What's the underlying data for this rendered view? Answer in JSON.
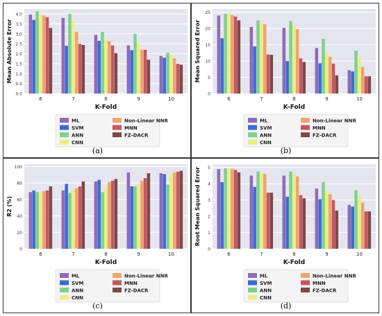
{
  "colors": {
    "plot_bg": "#e5e5ef",
    "grid": "#ffffff",
    "series": [
      "#8f6bb6",
      "#3d6bd6",
      "#7fd08e",
      "#e9ef86",
      "#eda56f",
      "#c95561",
      "#7a4b48"
    ]
  },
  "chart_data": [
    {
      "type": "bar",
      "panel_label": "(a)",
      "ylabel": "Mean Absolute Error",
      "xlabel": "K-Fold",
      "categories": [
        "6",
        "7",
        "8",
        "9",
        "10"
      ],
      "ylim": [
        0,
        4.25
      ],
      "yticks": [
        0.0,
        0.5,
        1.0,
        1.5,
        2.0,
        2.5,
        3.0,
        3.5,
        4.0
      ],
      "ytick_labels": [
        "0.0",
        "0.5",
        "1.0",
        "1.5",
        "2.0",
        "2.5",
        "3.0",
        "3.5",
        "4.0"
      ],
      "series": [
        {
          "name": "ML",
          "values": [
            3.97,
            3.8,
            2.95,
            2.42,
            1.89
          ]
        },
        {
          "name": "SVM",
          "values": [
            3.7,
            2.4,
            2.65,
            2.18,
            1.8
          ]
        },
        {
          "name": "ANN",
          "values": [
            4.14,
            4.0,
            3.1,
            3.0,
            2.05
          ]
        },
        {
          "name": "CNN",
          "values": [
            3.97,
            3.65,
            2.67,
            2.52,
            1.95
          ]
        },
        {
          "name": "Non-Linear NNR",
          "values": [
            3.92,
            3.1,
            2.64,
            2.2,
            1.77
          ]
        },
        {
          "name": "MNN",
          "values": [
            3.84,
            2.5,
            2.42,
            2.2,
            1.5
          ]
        },
        {
          "name": "FZ-DACR",
          "values": [
            3.3,
            2.44,
            2.03,
            1.7,
            1.45
          ]
        }
      ]
    },
    {
      "type": "bar",
      "panel_label": "(b)",
      "ylabel": "Mean Squared Error",
      "xlabel": "K-Fold",
      "categories": [
        "6",
        "7",
        "8",
        "9",
        "10"
      ],
      "ylim": [
        0,
        26
      ],
      "yticks": [
        0,
        5,
        10,
        15,
        20,
        25
      ],
      "ytick_labels": [
        "0",
        "5",
        "10",
        "15",
        "20",
        "25"
      ],
      "series": [
        {
          "name": "ML",
          "values": [
            24.0,
            20.5,
            20.2,
            14.0,
            7.2
          ]
        },
        {
          "name": "SVM",
          "values": [
            17.0,
            14.5,
            10.0,
            9.3,
            6.8
          ]
        },
        {
          "name": "ANN",
          "values": [
            24.5,
            22.5,
            22.3,
            16.8,
            13.2
          ]
        },
        {
          "name": "CNN",
          "values": [
            24.5,
            21.5,
            21.0,
            12.8,
            11.3
          ]
        },
        {
          "name": "Non-Linear NNR",
          "values": [
            24.2,
            21.3,
            19.8,
            11.3,
            8.2
          ]
        },
        {
          "name": "MNN",
          "values": [
            23.7,
            12.0,
            10.8,
            9.2,
            5.3
          ]
        },
        {
          "name": "FZ-DACR",
          "values": [
            22.5,
            11.9,
            9.7,
            5.6,
            5.3
          ]
        }
      ]
    },
    {
      "type": "bar",
      "panel_label": "(c)",
      "ylabel": "R2 (%)",
      "xlabel": "K-Fold",
      "categories": [
        "6",
        "7",
        "8",
        "9",
        "10"
      ],
      "ylim": [
        0,
        103
      ],
      "yticks": [
        0,
        20,
        40,
        60,
        80,
        100
      ],
      "ytick_labels": [
        "0",
        "20",
        "40",
        "60",
        "80",
        "100"
      ],
      "series": [
        {
          "name": "ML",
          "values": [
            69,
            71,
            82,
            93,
            92
          ]
        },
        {
          "name": "SVM",
          "values": [
            71,
            79,
            84,
            76,
            91
          ]
        },
        {
          "name": "ANN",
          "values": [
            69,
            68,
            69,
            76,
            78
          ]
        },
        {
          "name": "CNN",
          "values": [
            70,
            72,
            76,
            78,
            92
          ]
        },
        {
          "name": "Non-Linear NNR",
          "values": [
            70,
            74,
            81,
            83,
            93
          ]
        },
        {
          "name": "MNN",
          "values": [
            71,
            76,
            83,
            86,
            94
          ]
        },
        {
          "name": "FZ-DACR",
          "values": [
            76,
            82,
            85,
            92,
            95
          ]
        }
      ]
    },
    {
      "type": "bar",
      "panel_label": "(d)",
      "ylabel": "Root Mean Squared Error",
      "xlabel": "K-Fold",
      "categories": [
        "6",
        "7",
        "8",
        "9",
        "10"
      ],
      "ylim": [
        0,
        5.2
      ],
      "yticks": [
        0,
        1,
        2,
        3,
        4,
        5
      ],
      "ytick_labels": [
        "0",
        "1",
        "2",
        "3",
        "4",
        "5"
      ],
      "series": [
        {
          "name": "ML",
          "values": [
            4.9,
            4.5,
            4.5,
            3.7,
            2.7
          ]
        },
        {
          "name": "SVM",
          "values": [
            4.1,
            3.8,
            3.2,
            3.05,
            2.6
          ]
        },
        {
          "name": "ANN",
          "values": [
            4.95,
            4.75,
            4.75,
            4.1,
            3.6
          ]
        },
        {
          "name": "CNN",
          "values": [
            4.95,
            4.65,
            4.6,
            3.55,
            3.3
          ]
        },
        {
          "name": "Non-Linear NNR",
          "values": [
            4.92,
            4.6,
            4.45,
            3.35,
            2.85
          ]
        },
        {
          "name": "MNN",
          "values": [
            4.85,
            3.45,
            3.3,
            3.0,
            2.3
          ]
        },
        {
          "name": "FZ-DACR",
          "values": [
            4.7,
            3.45,
            3.1,
            2.35,
            2.3
          ]
        }
      ]
    }
  ]
}
